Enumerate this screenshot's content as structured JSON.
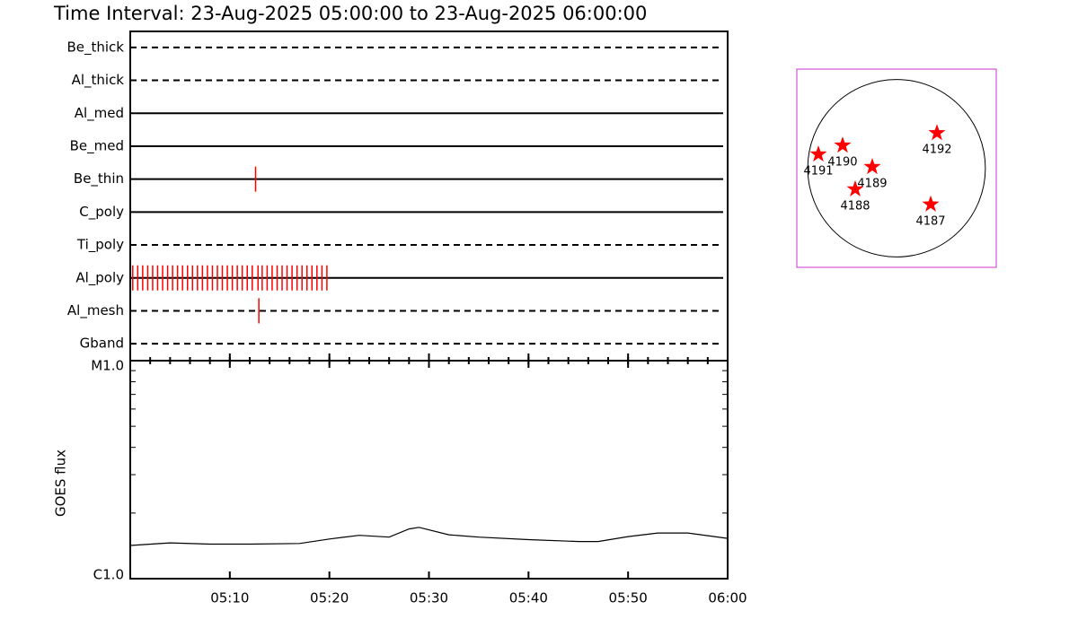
{
  "chart_data": [
    {
      "type": "timeline",
      "title": "Time Interval: 23-Aug-2025 05:00:00 to 23-Aug-2025 06:00:00",
      "xlim": [
        "05:00",
        "06:00"
      ],
      "color": "#ff0000",
      "series": [
        {
          "name": "Be_thick",
          "style": "dashed",
          "times": []
        },
        {
          "name": "Al_thick",
          "style": "dashed",
          "times": []
        },
        {
          "name": "Al_med",
          "style": "solid",
          "times": []
        },
        {
          "name": "Be_med",
          "style": "solid",
          "times": []
        },
        {
          "name": "Be_thin",
          "style": "solid",
          "times": [
            "05:12:35"
          ]
        },
        {
          "name": "C_poly",
          "style": "solid",
          "times": []
        },
        {
          "name": "Ti_poly",
          "style": "dashed",
          "times": []
        },
        {
          "name": "Al_poly",
          "style": "solid",
          "times": [
            "05:00:15",
            "05:00:45",
            "05:01:15",
            "05:01:45",
            "05:02:15",
            "05:02:45",
            "05:03:15",
            "05:03:45",
            "05:04:15",
            "05:04:45",
            "05:05:15",
            "05:05:45",
            "05:06:15",
            "05:06:45",
            "05:07:15",
            "05:07:45",
            "05:08:15",
            "05:08:45",
            "05:09:15",
            "05:09:45",
            "05:10:15",
            "05:10:45",
            "05:11:15",
            "05:11:45",
            "05:12:15",
            "05:12:50",
            "05:13:15",
            "05:13:45",
            "05:14:15",
            "05:14:45",
            "05:15:15",
            "05:15:45",
            "05:16:15",
            "05:16:45",
            "05:17:15",
            "05:17:45",
            "05:18:15",
            "05:18:45",
            "05:19:15",
            "05:19:45"
          ]
        },
        {
          "name": "Al_mesh",
          "style": "dashed",
          "times": [
            "05:12:55"
          ]
        },
        {
          "name": "Gband",
          "style": "dashed",
          "times": []
        }
      ]
    },
    {
      "type": "line",
      "ylabel": "GOES flux",
      "log_y": true,
      "ylim": [
        1e-06,
        1e-05
      ],
      "yticks": [
        {
          "value": 1e-06,
          "label": "C1.0"
        },
        {
          "value": 1e-05,
          "label": "M1.0"
        }
      ],
      "xlim": [
        "05:00",
        "06:00"
      ],
      "xticks": [
        "05:10",
        "05:20",
        "05:30",
        "05:40",
        "05:50",
        "06:00"
      ],
      "color": "#000000",
      "x": [
        "05:00",
        "05:04",
        "05:08",
        "05:12",
        "05:17",
        "05:20",
        "05:23",
        "05:26",
        "05:28",
        "05:29",
        "05:32",
        "05:35",
        "05:40",
        "05:45",
        "05:47",
        "05:50",
        "05:53",
        "05:56",
        "06:00"
      ],
      "values": [
        1.42e-06,
        1.46e-06,
        1.44e-06,
        1.44e-06,
        1.45e-06,
        1.52e-06,
        1.58e-06,
        1.55e-06,
        1.69e-06,
        1.72e-06,
        1.59e-06,
        1.55e-06,
        1.51e-06,
        1.48e-06,
        1.48e-06,
        1.56e-06,
        1.62e-06,
        1.62e-06,
        1.53e-06
      ]
    },
    {
      "type": "map",
      "xlim": [
        -1100,
        1100
      ],
      "ylim": [
        -1100,
        1100
      ],
      "solar_radius": 980,
      "color": "#ff0000",
      "frame_color": "#cc33cc",
      "points": [
        {
          "name": "4192",
          "x": 446,
          "y": 391
        },
        {
          "name": "4190",
          "x": -595,
          "y": 253
        },
        {
          "name": "4191",
          "x": -862,
          "y": 154
        },
        {
          "name": "4189",
          "x": -268,
          "y": 15
        },
        {
          "name": "4188",
          "x": -456,
          "y": -233
        },
        {
          "name": "4187",
          "x": 377,
          "y": -401
        }
      ]
    }
  ]
}
